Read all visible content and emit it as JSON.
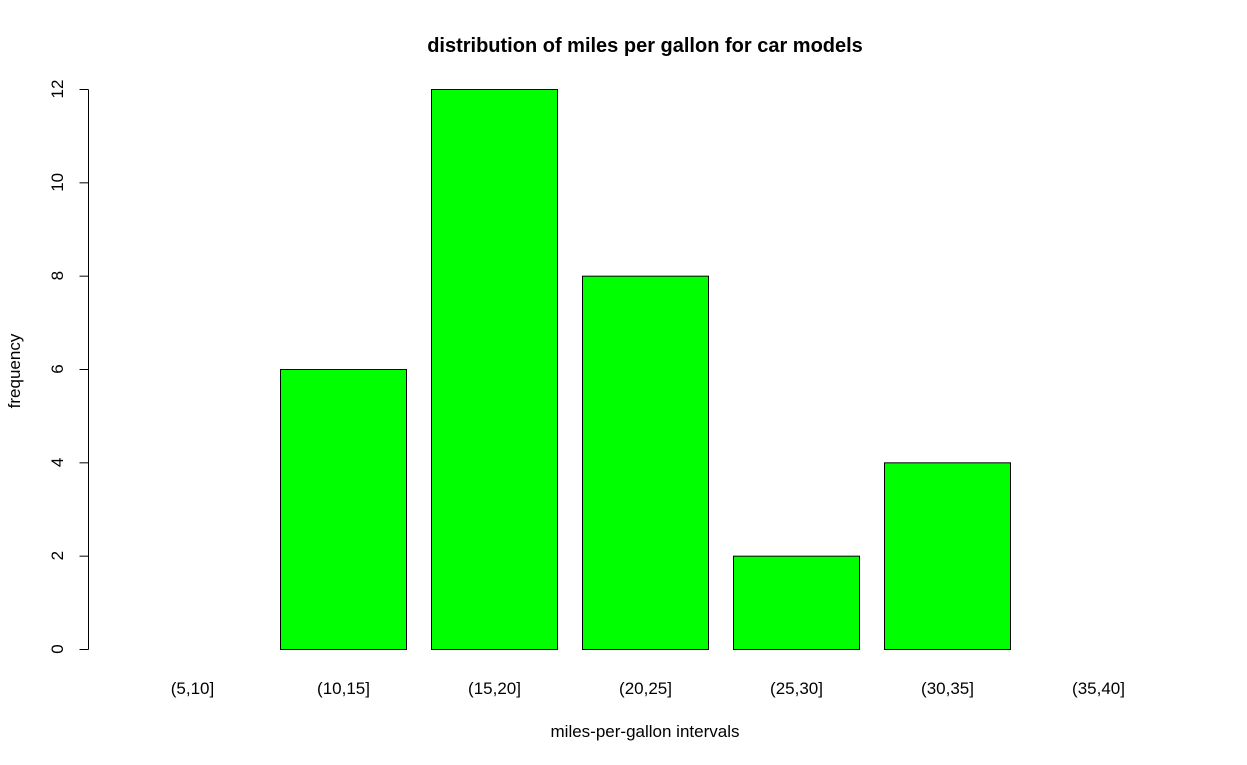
{
  "chart_data": {
    "type": "bar",
    "title": "distribution of miles per gallon for car models",
    "xlabel": "miles-per-gallon intervals",
    "ylabel": "frequency",
    "categories": [
      "(5,10]",
      "(10,15]",
      "(15,20]",
      "(20,25]",
      "(25,30]",
      "(30,35]",
      "(35,40]"
    ],
    "values": [
      0,
      6,
      12,
      8,
      2,
      4,
      0
    ],
    "ylim": [
      0,
      12
    ],
    "yticks": [
      0,
      2,
      4,
      6,
      8,
      10,
      12
    ],
    "ytick_labels": [
      "0",
      "2",
      "4",
      "6",
      "8",
      "10",
      "12"
    ],
    "bar_color": "#00ff00",
    "grid": false,
    "legend": false
  }
}
